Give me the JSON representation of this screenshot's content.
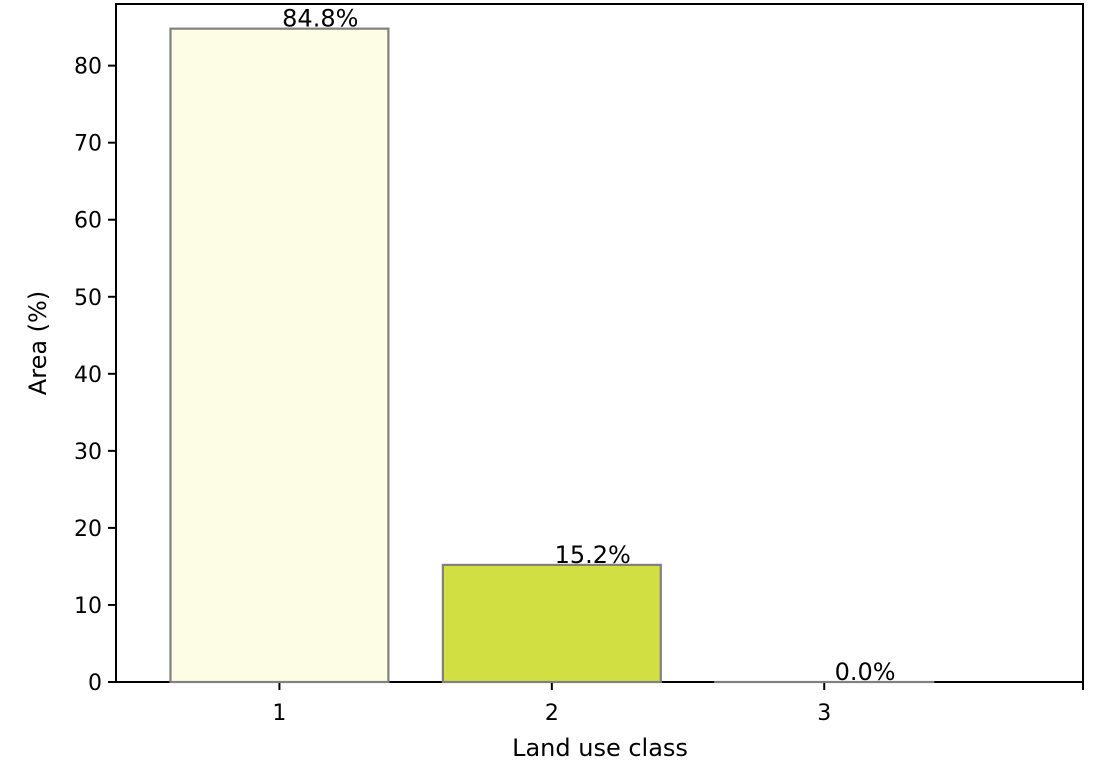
{
  "chart_data": {
    "type": "bar",
    "title": "",
    "xlabel": "Land use class",
    "ylabel": "Area (%)",
    "categories": [
      "1",
      "2",
      "3"
    ],
    "values": [
      84.8,
      15.2,
      0.0
    ],
    "data_labels": [
      "84.8%",
      "15.2%",
      "0.0%"
    ],
    "bar_colors": [
      "#fdfde6",
      "#d2df42",
      "#1b5e39"
    ],
    "bar_edge_color": "#808080",
    "ylim": [
      0,
      88
    ],
    "yticks": [
      0,
      10,
      20,
      30,
      40,
      50,
      60,
      70,
      80
    ],
    "ytick_labels": [
      "0",
      "10",
      "20",
      "30",
      "40",
      "50",
      "60",
      "70",
      "80"
    ],
    "grid": false,
    "legend": "none"
  }
}
